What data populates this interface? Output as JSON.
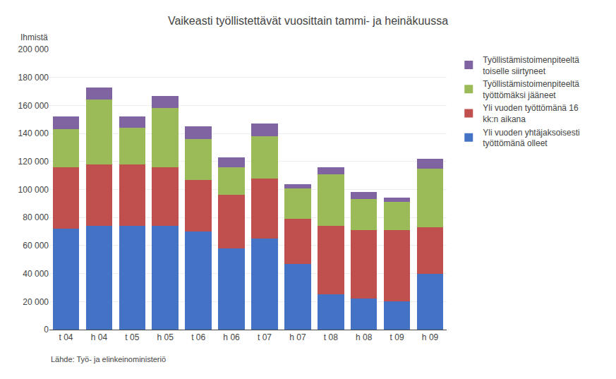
{
  "chart_data": {
    "type": "bar",
    "stacked": true,
    "title": "Vaikeasti työllistettävät vuosittain tammi- ja heinäkuussa",
    "ylabel": "Ihmistä",
    "annotations": [
      "Lähde: Työ- ja elinkeinoministeriö"
    ],
    "categories": [
      "t 04",
      "h 04",
      "t 05",
      "h 05",
      "t 06",
      "h 06",
      "t 07",
      "h 07",
      "t 08",
      "h 08",
      "t 09",
      "h 09"
    ],
    "series": [
      {
        "name": "Yli vuoden yhtäjaksoisesti\ntyöttömänä olleet",
        "color": "#4472C4",
        "values": [
          72000,
          74000,
          74000,
          74000,
          70000,
          58000,
          65000,
          47000,
          25000,
          22000,
          20000,
          40000
        ]
      },
      {
        "name": "Yli vuoden työttömänä 16\nkk:n aikana",
        "color": "#C0504D",
        "values": [
          44000,
          44000,
          44000,
          42000,
          37000,
          38000,
          43000,
          32000,
          49000,
          49000,
          51000,
          33000
        ]
      },
      {
        "name": "Työllistämistoimenpiteeltä\ntyöttömäksi jääneet",
        "color": "#9BBB59",
        "values": [
          27000,
          46000,
          26000,
          42000,
          29000,
          20000,
          30000,
          22000,
          37000,
          22000,
          20000,
          42000
        ]
      },
      {
        "name": "Työllistämistoimenpiteeltä\ntoiselle siirtyneet",
        "color": "#8064A2",
        "values": [
          9000,
          9000,
          8000,
          9000,
          9000,
          7000,
          9000,
          3000,
          5000,
          5000,
          3000,
          7000
        ]
      }
    ],
    "ylim": [
      0,
      200000
    ],
    "yticks": [
      0,
      {
        "value": 20000,
        "label": "20 000"
      },
      {
        "value": 40000,
        "label": "40 000"
      },
      {
        "value": 60000,
        "label": "60 000"
      },
      {
        "value": 80000,
        "label": "80 000"
      },
      {
        "value": 100000,
        "label": "100 000"
      },
      {
        "value": 120000,
        "label": "120 000"
      },
      {
        "value": 140000,
        "label": "140 000"
      },
      {
        "value": 160000,
        "label": "160 000"
      },
      {
        "value": 180000,
        "label": "180 000"
      },
      {
        "value": 200000,
        "label": "200 000"
      }
    ],
    "grid": true,
    "legend": "right"
  }
}
